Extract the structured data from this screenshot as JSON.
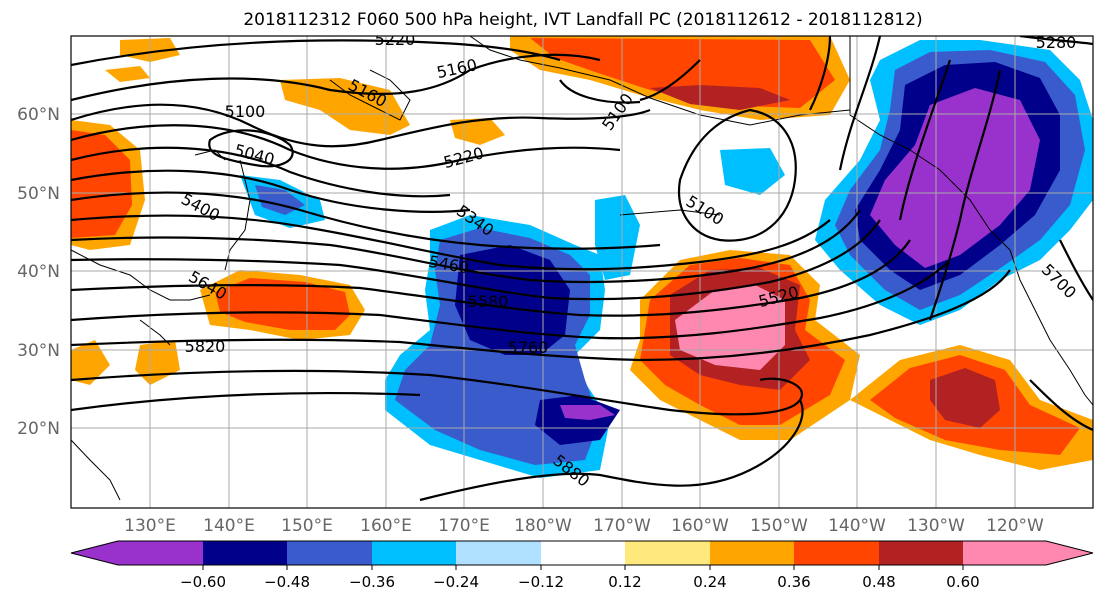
{
  "title": "2018112312 F060 500 hPa height, IVT Landfall PC (2018112612 - 2018112812)",
  "lat_labels": [
    "60°N",
    "50°N",
    "40°N",
    "30°N",
    "20°N"
  ],
  "lon_labels": [
    "130°E",
    "140°E",
    "150°E",
    "160°E",
    "170°E",
    "180°W",
    "170°W",
    "160°W",
    "150°W",
    "140°W",
    "130°W",
    "120°W"
  ],
  "contour_labels": [
    "5220",
    "5160",
    "5100",
    "5160",
    "5040",
    "5220",
    "5100",
    "5100",
    "5280",
    "5400",
    "5340",
    "5460",
    "5580",
    "5520",
    "5700",
    "5640",
    "5760",
    "5820",
    "5880"
  ],
  "colorbar": {
    "tick_labels": [
      "−0.60",
      "−0.48",
      "−0.36",
      "−0.24",
      "−0.12",
      "0.12",
      "0.24",
      "0.36",
      "0.48",
      "0.60"
    ],
    "colors": [
      "#9932cc",
      "#00008b",
      "#3a5bcc",
      "#00bfff",
      "#b0e0ff",
      "#ffffff",
      "#ffe87c",
      "#ffa500",
      "#ff4500",
      "#b22222",
      "#ff88b0"
    ]
  }
}
